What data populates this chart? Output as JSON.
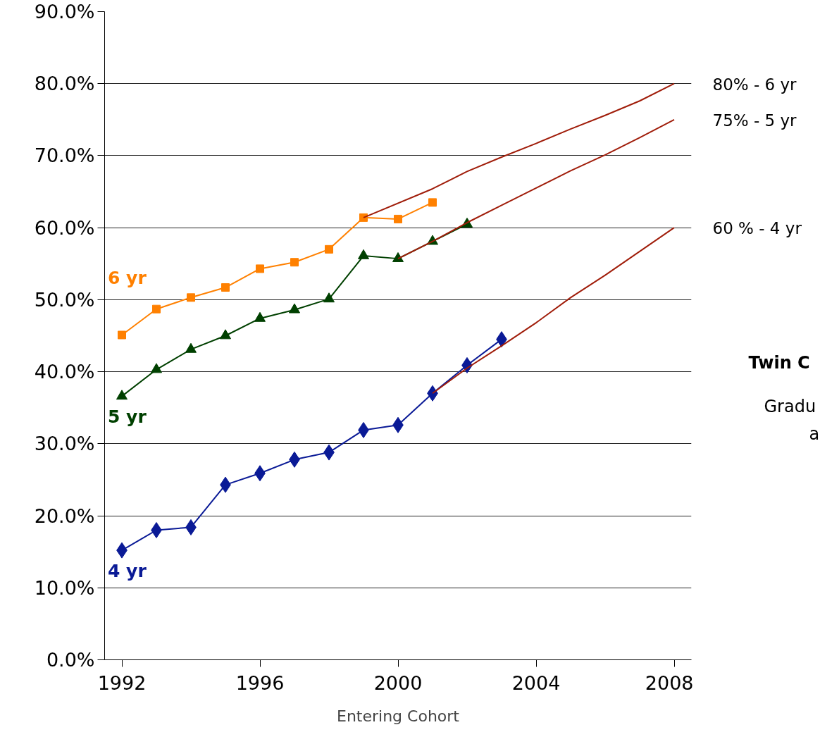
{
  "chart_data": {
    "type": "line",
    "xlabel": "Entering Cohort",
    "xlim": [
      1991.5,
      2008.5
    ],
    "xticks": [
      1992,
      1996,
      2000,
      2004,
      2008
    ],
    "ylim": [
      0,
      90
    ],
    "yticks": [
      {
        "value": 0,
        "label": "0.0%"
      },
      {
        "value": 10,
        "label": "10.0%"
      },
      {
        "value": 20,
        "label": "20.0%"
      },
      {
        "value": 30,
        "label": "30.0%"
      },
      {
        "value": 40,
        "label": "40.0%"
      },
      {
        "value": 50,
        "label": "50.0%"
      },
      {
        "value": 60,
        "label": "60.0%"
      },
      {
        "value": 70,
        "label": "70.0%"
      },
      {
        "value": 80,
        "label": "80.0%"
      },
      {
        "value": 90,
        "label": "90.0%"
      }
    ],
    "grid": "y",
    "legend": false,
    "series": [
      {
        "name": "6 yr",
        "color": "#ff8000",
        "marker": "square",
        "x": [
          1992,
          1993,
          1994,
          1995,
          1996,
          1997,
          1998,
          1999,
          2000,
          2001
        ],
        "values": [
          45.1,
          48.7,
          50.3,
          51.7,
          54.3,
          55.2,
          57.0,
          61.4,
          61.2,
          63.5
        ]
      },
      {
        "name": "5 yr",
        "color": "#004000",
        "marker": "triangle",
        "x": [
          1992,
          1993,
          1994,
          1995,
          1996,
          1997,
          1998,
          1999,
          2000,
          2001,
          2002
        ],
        "values": [
          36.6,
          40.3,
          43.1,
          45.0,
          47.4,
          48.6,
          50.1,
          56.1,
          55.7,
          58.1,
          60.5
        ]
      },
      {
        "name": "4 yr",
        "color": "#0a1a96",
        "marker": "diamond",
        "x": [
          1992,
          1993,
          1994,
          1995,
          1996,
          1997,
          1998,
          1999,
          2000,
          2001,
          2002,
          2003
        ],
        "values": [
          15.2,
          18.0,
          18.4,
          24.3,
          25.9,
          27.8,
          28.8,
          31.9,
          32.6,
          37.0,
          40.9,
          44.5
        ]
      },
      {
        "name": "80% - 6 yr",
        "color": "#a01d0a",
        "marker": "none",
        "x": [
          1999,
          2001,
          2002,
          2003,
          2004,
          2005,
          2006,
          2007,
          2008
        ],
        "values": [
          61.4,
          65.4,
          67.8,
          69.8,
          71.7,
          73.7,
          75.6,
          77.6,
          80.0
        ]
      },
      {
        "name": "75% - 5 yr",
        "color": "#a01d0a",
        "marker": "none",
        "x": [
          2000,
          2001,
          2002,
          2003,
          2004,
          2005,
          2006,
          2007,
          2008
        ],
        "values": [
          55.7,
          58.1,
          60.7,
          63.1,
          65.5,
          67.9,
          70.1,
          72.5,
          75.0
        ]
      },
      {
        "name": "60 % - 4 yr",
        "color": "#a01d0a",
        "marker": "none",
        "x": [
          2001,
          2002,
          2003,
          2004,
          2005,
          2006,
          2007,
          2008
        ],
        "values": [
          37.0,
          40.5,
          43.6,
          46.8,
          50.3,
          53.4,
          56.7,
          60.0
        ]
      }
    ],
    "annotations": [
      "Twin C",
      "Gradu",
      "a"
    ]
  }
}
